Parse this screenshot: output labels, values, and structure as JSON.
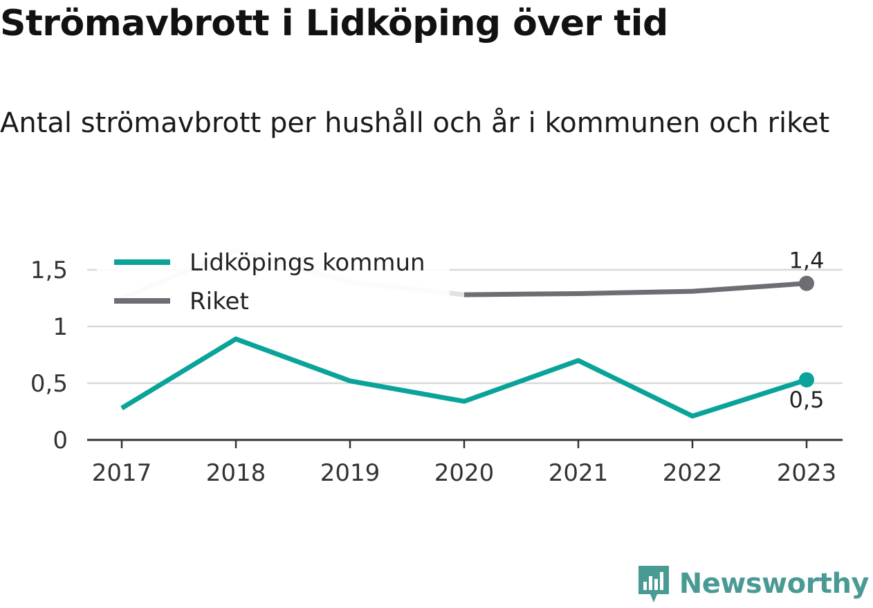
{
  "title": "Strömavbrott i Lidköping över tid",
  "subtitle": "Antal strömavbrott per hushåll och år i kommunen och riket",
  "brand": {
    "name": "Newsworthy"
  },
  "colors": {
    "lidkoping": "#0aa39a",
    "riket": "#6e6d73",
    "riket_faded": "#e2e2e2",
    "grid": "#d9d9d9",
    "axis": "#333333"
  },
  "chart_data": {
    "type": "line",
    "title": "Strömavbrott i Lidköping över tid",
    "subtitle": "Antal strömavbrott per hushåll och år i kommunen och riket",
    "xlabel": "",
    "ylabel": "",
    "categories": [
      "2017",
      "2018",
      "2019",
      "2020",
      "2021",
      "2022",
      "2023"
    ],
    "ylim": [
      0,
      1.8
    ],
    "yticks": [
      0,
      0.5,
      1,
      1.5
    ],
    "ytick_labels": [
      "0",
      "0,5",
      "1",
      "1,5"
    ],
    "grid": true,
    "legend_position": "top-left",
    "series": [
      {
        "name": "Lidköpings kommun",
        "color": "#0aa39a",
        "values": [
          0.28,
          0.89,
          0.52,
          0.34,
          0.7,
          0.21,
          0.53
        ],
        "end_label": "0,5"
      },
      {
        "name": "Riket",
        "color": "#6e6d73",
        "values": [
          1.25,
          1.67,
          1.39,
          1.28,
          1.29,
          1.31,
          1.38
        ],
        "end_label": "1,4"
      }
    ]
  }
}
